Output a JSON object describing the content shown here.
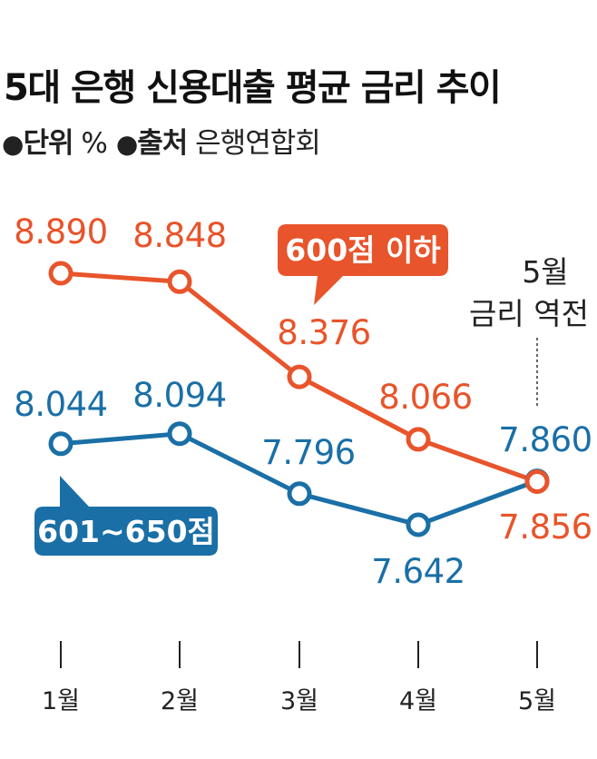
{
  "title": "5대 은행 신용대출 평균 금리 추이",
  "meta": {
    "bullet": "●",
    "unit_key": "단위",
    "unit_value": "%",
    "source_key": "출처",
    "source_value": "은행연합회"
  },
  "annotation": {
    "line1": "5월",
    "line2": "금리 역전"
  },
  "colors": {
    "orange": "#e8542b",
    "blue": "#1a6fa6"
  },
  "chart_data": {
    "type": "line",
    "title": "5대 은행 신용대출 평균 금리 추이",
    "ylabel": "%",
    "x": [
      "1월",
      "2월",
      "3월",
      "4월",
      "5월"
    ],
    "ylim": [
      7.5,
      9.0
    ],
    "grid": false,
    "series": [
      {
        "name": "600점 이하",
        "values": [
          8.89,
          8.848,
          8.376,
          8.066,
          7.856
        ],
        "labels": [
          "8.890",
          "8.848",
          "8.376",
          "8.066",
          "7.856"
        ],
        "color": "#e8542b"
      },
      {
        "name": "601~650점",
        "values": [
          8.044,
          8.094,
          7.796,
          7.642,
          7.86
        ],
        "labels": [
          "8.044",
          "8.094",
          "7.796",
          "7.642",
          "7.860"
        ],
        "color": "#1a6fa6"
      }
    ]
  }
}
